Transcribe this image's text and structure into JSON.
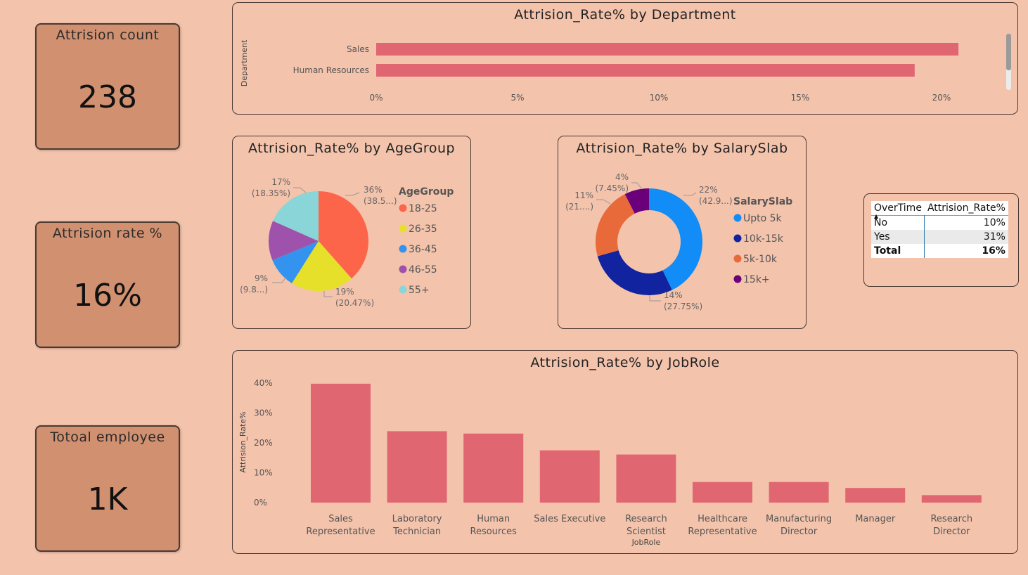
{
  "kpis": {
    "attrition_count": {
      "title": "Attrision count",
      "value": "238"
    },
    "attrition_rate": {
      "title": "Attrision rate %",
      "value": "16%"
    },
    "total_employee": {
      "title": "Totoal employee",
      "value": "1K"
    }
  },
  "colors": {
    "bar": "#e06772",
    "age": [
      "#fd654a",
      "#e6e02b",
      "#3393ef",
      "#9f52ac",
      "#8ad5d7"
    ],
    "salary": [
      "#128cf6",
      "#12239f",
      "#e8693a",
      "#6b007b"
    ]
  },
  "dept_chart": {
    "title": "Attrision_Rate% by Department",
    "ylabel": "Department",
    "chart_data": {
      "type": "bar",
      "orientation": "horizontal",
      "categories": [
        "Sales",
        "Human Resources"
      ],
      "values": [
        20.6,
        19.05
      ],
      "xlim": [
        0,
        22
      ],
      "ticks": [
        "0%",
        "5%",
        "10%",
        "15%",
        "20%"
      ]
    }
  },
  "age_chart": {
    "title": "Attrision_Rate% by AgeGroup",
    "legend_title": "AgeGroup",
    "chart_data": {
      "type": "pie",
      "categories": [
        "18-25",
        "26-35",
        "36-45",
        "46-55",
        "55+"
      ],
      "values": [
        38.5,
        20.47,
        9.8,
        12.88,
        18.35
      ]
    },
    "labels": [
      {
        "a": "36%",
        "b": "(38.5...)"
      },
      {
        "a": "19%",
        "b": "(20.47%)"
      },
      {
        "a": "9%",
        "b": "(9.8...)"
      },
      {
        "a": "17%",
        "b": "(18.35%)"
      }
    ]
  },
  "salary_chart": {
    "title": "Attrision_Rate% by SalarySlab",
    "legend_title": "SalarySlab",
    "chart_data": {
      "type": "pie",
      "donut": true,
      "categories": [
        "Upto 5k",
        "10k-15k",
        "5k-10k",
        "15k+"
      ],
      "values": [
        42.9,
        27.75,
        21.9,
        7.45
      ]
    },
    "labels": [
      {
        "a": "22%",
        "b": "(42.9...)"
      },
      {
        "a": "14%",
        "b": "(27.75%)"
      },
      {
        "a": "11%",
        "b": "(21....)"
      },
      {
        "a": "4%",
        "b": "(7.45%)"
      }
    ]
  },
  "overtime_table": {
    "headers": [
      "OverTime",
      "Attrision_Rate%"
    ],
    "rows": [
      [
        "No",
        "10%"
      ],
      [
        "Yes",
        "31%"
      ]
    ],
    "total": [
      "Total",
      "16%"
    ]
  },
  "jobrole_chart": {
    "title": "Attrision_Rate% by JobRole",
    "xlabel": "JobRole",
    "ylabel": "Attrision_Rate%",
    "chart_data": {
      "type": "bar",
      "categories": [
        "Sales Representative",
        "Laboratory Technician",
        "Human Resources",
        "Sales Executive",
        "Research Scientist",
        "Healthcare Representative",
        "Manufacturing Director",
        "Manager",
        "Research Director"
      ],
      "values": [
        39.8,
        23.9,
        23.1,
        17.5,
        16.1,
        6.9,
        6.9,
        4.9,
        2.5
      ],
      "ylim": [
        0,
        40
      ],
      "ticks": [
        "0%",
        "10%",
        "20%",
        "30%",
        "40%"
      ]
    },
    "label_lines": [
      [
        "Sales",
        "Representative"
      ],
      [
        "Laboratory",
        "Technician"
      ],
      [
        "Human",
        "Resources"
      ],
      [
        "Sales Executive"
      ],
      [
        "Research",
        "Scientist"
      ],
      [
        "Healthcare",
        "Representative"
      ],
      [
        "Manufacturing",
        "Director"
      ],
      [
        "Manager"
      ],
      [
        "Research",
        "Director"
      ]
    ]
  }
}
